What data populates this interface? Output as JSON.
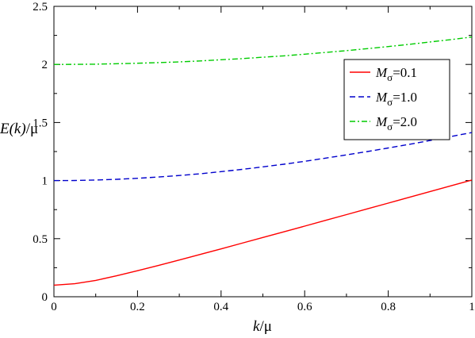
{
  "chart_data": {
    "type": "line",
    "xlabel": {
      "var": "k",
      "unit": "/μ"
    },
    "ylabel": {
      "var": "E(k)",
      "unit": "/μ"
    },
    "xlim": [
      0,
      1
    ],
    "ylim": [
      0,
      2.5
    ],
    "xticks": [
      0,
      0.2,
      0.4,
      0.6,
      0.8,
      1
    ],
    "yticks": [
      0,
      0.5,
      1,
      1.5,
      2,
      2.5
    ],
    "xtick_labels": [
      "0",
      "0.2",
      "0.4",
      "0.6",
      "0.8",
      "1"
    ],
    "ytick_labels": [
      "0",
      "0.5",
      "1",
      "1.5",
      "2",
      "2.5"
    ],
    "grid": false,
    "legend_position": "top-right",
    "x": [
      0,
      0.05,
      0.1,
      0.15,
      0.2,
      0.25,
      0.3,
      0.35,
      0.4,
      0.45,
      0.5,
      0.55,
      0.6,
      0.65,
      0.7,
      0.75,
      0.8,
      0.85,
      0.9,
      0.95,
      1
    ],
    "series": [
      {
        "name": "Mσ=0.1",
        "label_symbol": "M",
        "label_sub": "σ",
        "label_value": "=0.1",
        "color": "#ff0000",
        "dash": "solid",
        "values": [
          0.1,
          0.112,
          0.141,
          0.18,
          0.224,
          0.269,
          0.316,
          0.364,
          0.412,
          0.461,
          0.51,
          0.559,
          0.608,
          0.658,
          0.707,
          0.757,
          0.806,
          0.856,
          0.906,
          0.955,
          1.005
        ]
      },
      {
        "name": "Mσ=1.0",
        "label_symbol": "M",
        "label_sub": "σ",
        "label_value": "=1.0",
        "color": "#0000cc",
        "dash": "dashed",
        "values": [
          1.0,
          1.001,
          1.005,
          1.011,
          1.02,
          1.031,
          1.044,
          1.059,
          1.077,
          1.096,
          1.118,
          1.141,
          1.166,
          1.193,
          1.221,
          1.25,
          1.281,
          1.312,
          1.345,
          1.379,
          1.414
        ]
      },
      {
        "name": "Mσ=2.0",
        "label_symbol": "M",
        "label_sub": "σ",
        "label_value": "=2.0",
        "color": "#00cc00",
        "dash": "dash-dot",
        "values": [
          2.0,
          2.001,
          2.002,
          2.006,
          2.01,
          2.016,
          2.022,
          2.03,
          2.04,
          2.05,
          2.062,
          2.074,
          2.088,
          2.103,
          2.119,
          2.136,
          2.154,
          2.173,
          2.193,
          2.214,
          2.236
        ]
      }
    ]
  }
}
